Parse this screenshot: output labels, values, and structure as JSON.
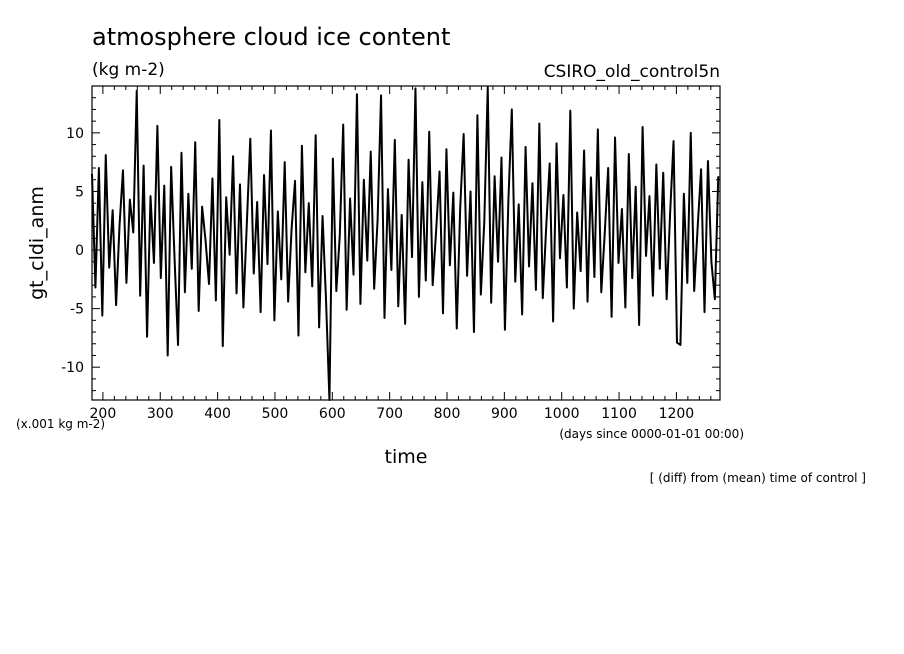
{
  "chart_data": {
    "type": "line",
    "title": "atmosphere cloud ice content",
    "subtitle": "(kg m-2)",
    "source_label": "CSIRO_old_control5n",
    "xlabel": "time",
    "x_units": "(days since 0000-01-01 00:00)",
    "ylabel": "gt_cldi_anm",
    "y_units": "(x.001 kg m-2)",
    "footnote": "[ (diff) from (mean) time of control ]",
    "xlim": [
      181,
      1276
    ],
    "ylim": [
      -12.8,
      14
    ],
    "x_ticks": [
      200,
      300,
      400,
      500,
      600,
      700,
      800,
      900,
      1000,
      1100,
      1200
    ],
    "y_ticks": [
      -10,
      -5,
      0,
      5,
      10
    ],
    "grid": false,
    "series": [
      {
        "x": [
          181,
          187,
          193,
          199,
          205,
          211,
          217,
          223,
          229,
          235,
          241,
          247,
          253,
          259,
          265,
          271,
          277,
          283,
          289,
          295,
          301,
          307,
          313,
          319,
          325,
          331,
          337,
          343,
          349,
          355,
          361,
          367,
          373,
          379,
          385,
          391,
          397,
          403,
          409,
          415,
          421,
          427,
          433,
          439,
          445,
          451,
          457,
          463,
          469,
          475,
          481,
          487,
          493,
          499,
          505,
          511,
          517,
          523,
          529,
          535,
          541,
          547,
          553,
          559,
          565,
          571,
          577,
          583,
          589,
          595,
          601,
          607,
          613,
          619,
          625,
          631,
          637,
          643,
          649,
          655,
          661,
          667,
          673,
          679,
          685,
          691,
          697,
          703,
          709,
          715,
          721,
          727,
          733,
          739,
          745,
          751,
          757,
          763,
          769,
          775,
          781,
          787,
          793,
          799,
          805,
          811,
          817,
          823,
          829,
          835,
          841,
          847,
          853,
          859,
          865,
          871,
          877,
          883,
          889,
          895,
          901,
          907,
          913,
          919,
          925,
          931,
          937,
          943,
          949,
          955,
          961,
          967,
          973,
          979,
          985,
          991,
          997,
          1003,
          1009,
          1015,
          1021,
          1027,
          1033,
          1039,
          1045,
          1051,
          1057,
          1063,
          1069,
          1075,
          1081,
          1087,
          1093,
          1099,
          1105,
          1111,
          1117,
          1123,
          1129,
          1135,
          1141,
          1147,
          1153,
          1159,
          1165,
          1171,
          1177,
          1183,
          1189,
          1195,
          1201,
          1207,
          1213,
          1219,
          1225,
          1231,
          1237,
          1243,
          1249,
          1255,
          1261,
          1267,
          1273
        ],
        "values": [
          6.5,
          -3.2,
          7.0,
          -5.6,
          8.1,
          -1.5,
          3.4,
          -4.7,
          2.1,
          6.8,
          -2.8,
          4.3,
          1.5,
          13.6,
          -3.9,
          7.2,
          -7.4,
          4.6,
          -1.1,
          10.6,
          -2.4,
          5.5,
          -9.0,
          7.1,
          -0.8,
          -8.1,
          8.3,
          -3.6,
          4.8,
          -1.6,
          9.2,
          -5.2,
          3.7,
          0.8,
          -2.9,
          6.1,
          -4.3,
          11.1,
          -8.2,
          4.5,
          -0.4,
          8.0,
          -3.7,
          5.6,
          -4.9,
          2.3,
          9.5,
          -2.0,
          4.1,
          -5.3,
          6.4,
          -1.2,
          10.2,
          -6.0,
          3.3,
          -2.5,
          7.5,
          -4.4,
          1.8,
          5.9,
          -7.3,
          8.9,
          -1.9,
          4.0,
          -3.1,
          9.8,
          -6.6,
          2.9,
          -4.2,
          -12.8,
          7.8,
          -3.5,
          1.2,
          10.7,
          -5.1,
          4.4,
          -2.1,
          13.3,
          -4.6,
          6.0,
          -0.9,
          8.4,
          -3.3,
          2.6,
          13.2,
          -5.8,
          5.2,
          -1.7,
          9.4,
          -4.8,
          3.0,
          -6.3,
          7.7,
          -0.6,
          13.8,
          -4.0,
          5.8,
          -2.6,
          10.1,
          -3.0,
          1.6,
          6.7,
          -5.4,
          8.6,
          -1.3,
          4.9,
          -6.7,
          3.6,
          9.9,
          -2.2,
          5.0,
          -7.0,
          11.5,
          -3.8,
          2.4,
          13.9,
          -4.5,
          6.3,
          -1.0,
          7.9,
          -6.8,
          4.2,
          12.0,
          -2.7,
          3.9,
          -5.5,
          8.8,
          -1.4,
          5.7,
          -3.4,
          10.8,
          -4.1,
          2.0,
          7.4,
          -6.1,
          9.1,
          -0.7,
          4.7,
          -3.2,
          11.9,
          -5.0,
          3.2,
          -1.8,
          8.5,
          -4.4,
          6.2,
          -2.3,
          10.3,
          -3.6,
          1.4,
          7.0,
          -5.7,
          9.6,
          -1.1,
          3.5,
          -4.9,
          8.2,
          -2.4,
          5.4,
          -6.4,
          10.5,
          -0.5,
          4.6,
          -3.9,
          7.3,
          -1.6,
          6.6,
          -4.2,
          3.1,
          9.3,
          -7.9,
          -8.1,
          4.8,
          -2.8,
          10.0,
          -3.5,
          1.9,
          6.9,
          -5.3,
          7.6,
          -1.0,
          -4.2,
          6.3
        ]
      }
    ]
  }
}
